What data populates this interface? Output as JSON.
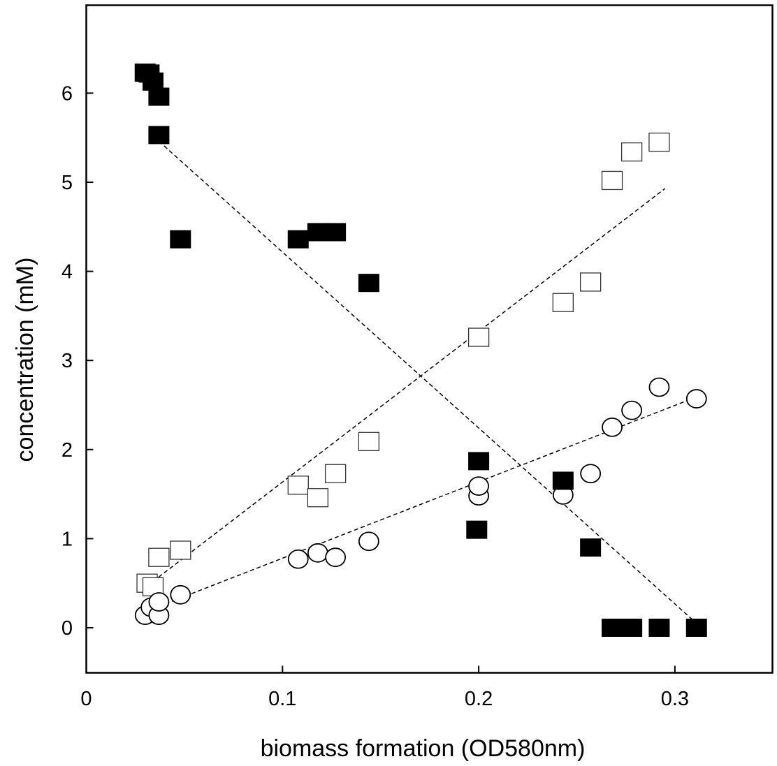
{
  "chart_data": {
    "type": "scatter",
    "title": "",
    "xlabel": "biomass formation (OD580nm)",
    "ylabel": "concentration (mM)",
    "xlim": [
      0,
      0.35
    ],
    "ylim": [
      -0.5,
      7
    ],
    "xticks": [
      0,
      0.1,
      0.2,
      0.3
    ],
    "xtick_labels": [
      "0",
      "0.1",
      "0.2",
      "0.3"
    ],
    "yticks": [
      0,
      1,
      2,
      3,
      4,
      5,
      6
    ],
    "ytick_labels": [
      "0",
      "1",
      "2",
      "3",
      "4",
      "5",
      "6"
    ],
    "grid": false,
    "legend": "none",
    "series": [
      {
        "name": "filled squares",
        "marker": "square-filled",
        "x": [
          0.03,
          0.032,
          0.034,
          0.037,
          0.037,
          0.048,
          0.108,
          0.118,
          0.127,
          0.144,
          0.2,
          0.199,
          0.243,
          0.257,
          0.268,
          0.278,
          0.292,
          0.311
        ],
        "y": [
          6.23,
          6.22,
          6.13,
          5.96,
          5.53,
          4.36,
          4.36,
          4.44,
          4.44,
          3.87,
          1.87,
          1.1,
          1.65,
          0.9,
          0.0,
          0.0,
          0.0,
          0.0
        ],
        "fit": {
          "x": [
            0.037,
            0.311
          ],
          "y": [
            5.46,
            0.05
          ]
        }
      },
      {
        "name": "open squares",
        "marker": "square-open",
        "x": [
          0.031,
          0.034,
          0.037,
          0.048,
          0.108,
          0.118,
          0.127,
          0.144,
          0.2,
          0.243,
          0.257,
          0.268,
          0.278,
          0.292
        ],
        "y": [
          0.5,
          0.46,
          0.79,
          0.87,
          1.6,
          1.46,
          1.73,
          2.09,
          3.26,
          3.65,
          3.88,
          5.02,
          5.34,
          5.45
        ],
        "fit": {
          "x": [
            0.034,
            0.295
          ],
          "y": [
            0.52,
            4.93
          ]
        }
      },
      {
        "name": "open circles",
        "marker": "circle-open",
        "x": [
          0.03,
          0.033,
          0.037,
          0.037,
          0.048,
          0.108,
          0.118,
          0.127,
          0.144,
          0.2,
          0.2,
          0.243,
          0.257,
          0.268,
          0.278,
          0.292,
          0.311
        ],
        "y": [
          0.14,
          0.23,
          0.14,
          0.29,
          0.37,
          0.77,
          0.84,
          0.79,
          0.97,
          1.48,
          1.59,
          1.49,
          1.73,
          2.25,
          2.44,
          2.7,
          2.57
        ],
        "fit": {
          "x": [
            0.037,
            0.311
          ],
          "y": [
            0.24,
            2.59
          ]
        }
      }
    ]
  }
}
